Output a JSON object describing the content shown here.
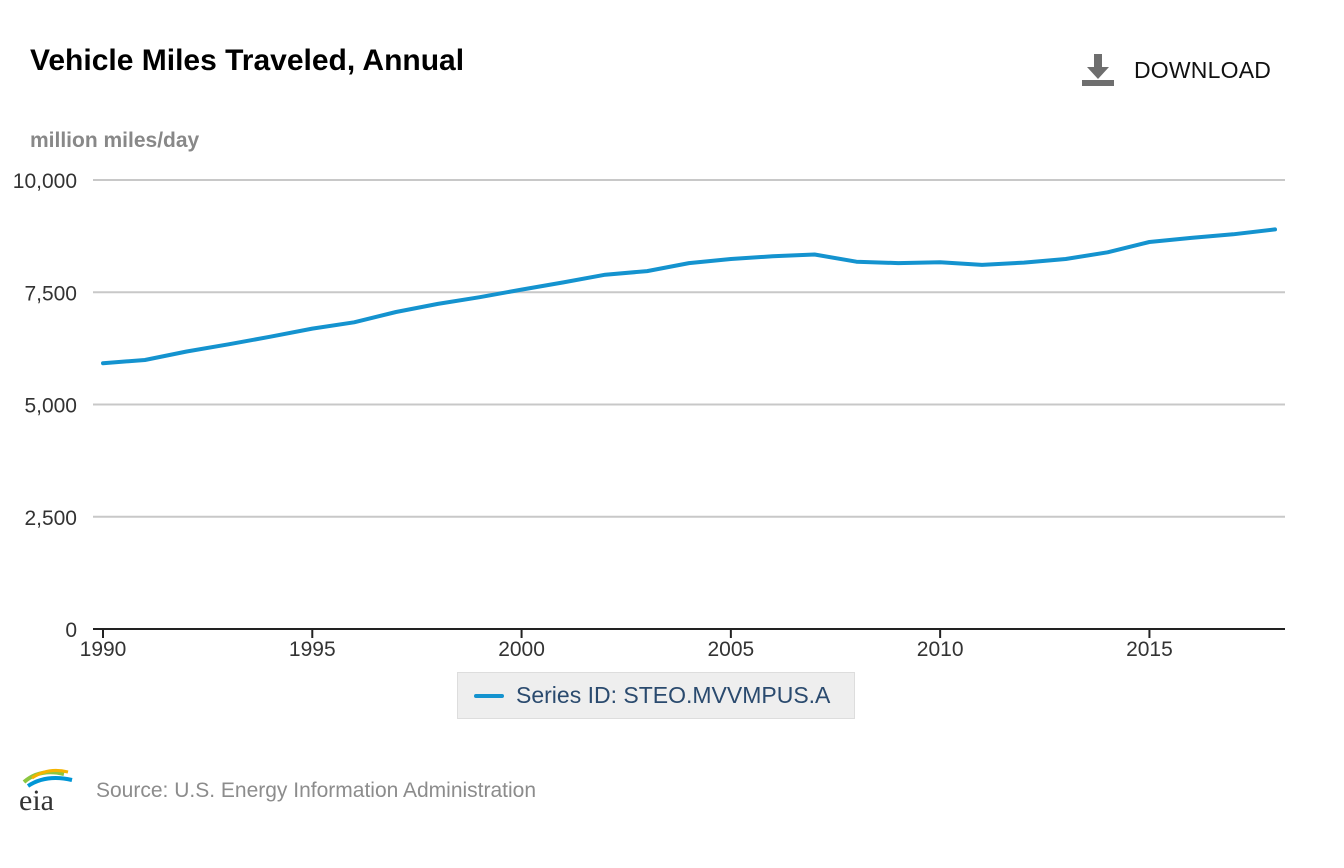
{
  "header": {
    "title": "Vehicle Miles Traveled, Annual",
    "download_label": "DOWNLOAD"
  },
  "units_label": "million miles/day",
  "legend": {
    "label": "Series ID: STEO.MVVMPUS.A"
  },
  "footer": {
    "logo_text": "eia",
    "source": "Source: U.S. Energy Information Administration"
  },
  "colors": {
    "series": "#1493cf",
    "grid": "#c8c8c8",
    "axis": "#222222",
    "tick_text": "#333333",
    "download_icon": "#6e6e6e"
  },
  "chart_data": {
    "type": "line",
    "title": "Vehicle Miles Traveled, Annual",
    "xlabel": "",
    "ylabel": "million miles/day",
    "xlim": [
      1990,
      2018
    ],
    "ylim": [
      0,
      10000
    ],
    "x_ticks": [
      1990,
      1995,
      2000,
      2005,
      2010,
      2015
    ],
    "x_tick_labels": [
      "1990",
      "1995",
      "2000",
      "2005",
      "2010",
      "2015"
    ],
    "y_ticks": [
      0,
      2500,
      5000,
      7500,
      10000
    ],
    "y_tick_labels": [
      "0",
      "2,500",
      "5,000",
      "7,500",
      "10,000"
    ],
    "grid": true,
    "legend_position": "bottom-center",
    "series": [
      {
        "name": "Series ID: STEO.MVVMPUS.A",
        "x": [
          1990,
          1991,
          1992,
          1993,
          1994,
          1995,
          1996,
          1997,
          1998,
          1999,
          2000,
          2001,
          2002,
          2003,
          2004,
          2005,
          2006,
          2007,
          2008,
          2009,
          2010,
          2011,
          2012,
          2013,
          2014,
          2015,
          2016,
          2017,
          2018
        ],
        "values": [
          5920,
          5990,
          6180,
          6340,
          6510,
          6690,
          6830,
          7060,
          7240,
          7390,
          7560,
          7720,
          7890,
          7970,
          8150,
          8240,
          8300,
          8340,
          8180,
          8150,
          8170,
          8110,
          8160,
          8240,
          8390,
          8620,
          8710,
          8790,
          8900
        ]
      }
    ]
  }
}
